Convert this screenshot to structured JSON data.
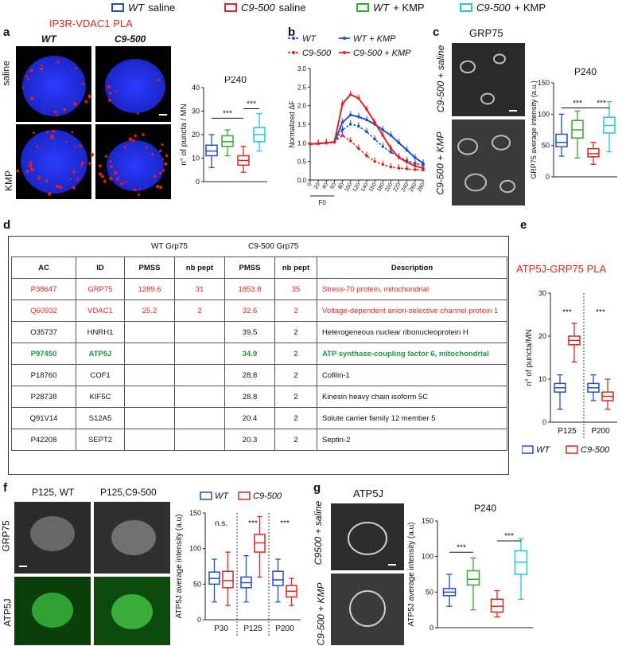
{
  "legend": [
    {
      "genotype": "WT",
      "rest": " saline",
      "color": "#1f4fd1"
    },
    {
      "genotype": "C9-500",
      "rest": " saline",
      "color": "#e0251d"
    },
    {
      "genotype": "WT",
      "rest": " + KMP",
      "color": "#2eaa2e"
    },
    {
      "genotype": "C9-500",
      "rest": " + KMP",
      "color": "#22c6dc"
    }
  ],
  "panels": {
    "a": {
      "letter": "a",
      "title": "IP3R-VDAC1 PLA",
      "col_wt": "WT",
      "col_c9": "C9-500",
      "row_saline": "saline",
      "row_kmp": "KMP"
    },
    "b": {
      "letter": "b"
    },
    "c": {
      "letter": "c",
      "title": "GRP75",
      "row1": "C9-500 + saline",
      "row2": "C9-500 + KMP"
    },
    "d": {
      "letter": "d"
    },
    "e": {
      "letter": "e",
      "title": "ATP5J-GRP75 PLA"
    },
    "f": {
      "letter": "f",
      "col_wt": "P125, WT",
      "col_c9": "P125,C9-500",
      "row1": "GRP75",
      "row2": "ATP5J"
    },
    "g": {
      "letter": "g",
      "title": "ATP5J",
      "row1": "C9500 + saline",
      "row2": "C9-500 + KMP"
    }
  },
  "table": {
    "group_wt": "WT Grp75",
    "group_c9": "C9-500 Grp75",
    "headers": [
      "AC",
      "ID",
      "PMSS",
      "nb pept",
      "PMSS",
      "nb pept",
      "Description"
    ],
    "rows": [
      {
        "style": "red",
        "cells": [
          "P38647",
          "GRP75",
          "1289.6",
          "31",
          "1853.8",
          "35",
          "Stress-70 protein, mitochondrial"
        ]
      },
      {
        "style": "red",
        "cells": [
          "Q60932",
          "VDAC1",
          "25.2",
          "2",
          "32.6",
          "2",
          "Voltage-dependent anion-selective channel protein 1"
        ]
      },
      {
        "style": "",
        "cells": [
          "O35737",
          "HNRH1",
          "",
          "",
          "39.5",
          "2",
          "Heterogeneous nuclear ribonucleoprotein H"
        ]
      },
      {
        "style": "green",
        "cells": [
          "P97450",
          "ATP5J",
          "",
          "",
          "34.9",
          "2",
          "ATP synthase-coupling factor 6, mitochondrial"
        ]
      },
      {
        "style": "",
        "cells": [
          "P18760",
          "COF1",
          "",
          "",
          "28.8",
          "2",
          "Cofilin-1"
        ]
      },
      {
        "style": "",
        "cells": [
          "P28738",
          "KIF5C",
          "",
          "",
          "28.8",
          "2",
          "Kinesin heavy chain isoform 5C"
        ]
      },
      {
        "style": "",
        "cells": [
          "Q91V14",
          "S12A5",
          "",
          "",
          "20.4",
          "2",
          "Solute carrier family 12 member 5"
        ]
      },
      {
        "style": "",
        "cells": [
          "P42208",
          "SEPT2",
          "",
          "",
          "20.3",
          "2",
          "Septin-2"
        ]
      }
    ]
  },
  "chart_data": [
    {
      "id": "a",
      "type": "box",
      "title": "P240",
      "ylabel": "n° of puncta / MN",
      "ylim": [
        0,
        40
      ],
      "yticks": [
        0,
        10,
        20,
        30,
        40
      ],
      "boxes": [
        {
          "color": "#1f4fd1",
          "min": 6,
          "q1": 11,
          "median": 13,
          "q3": 15.5,
          "max": 20
        },
        {
          "color": "#2eaa2e",
          "min": 11,
          "q1": 15,
          "median": 17,
          "q3": 19.5,
          "max": 22
        },
        {
          "color": "#e0251d",
          "min": 4,
          "q1": 7,
          "median": 9,
          "q3": 11,
          "max": 15
        },
        {
          "color": "#22c6dc",
          "min": 13,
          "q1": 17,
          "median": 20,
          "q3": 23,
          "max": 29
        }
      ],
      "sig": [
        {
          "from": 0,
          "to": 2,
          "y": 27,
          "label": "***"
        },
        {
          "from": 2,
          "to": 3,
          "y": 31,
          "label": "***"
        }
      ]
    },
    {
      "id": "b",
      "type": "line",
      "ylabel": "Normalized ΔF",
      "xlabel": "F0",
      "ylim": [
        0,
        3.0
      ],
      "yticks": [
        "0.0",
        "0.5",
        "1.0",
        "1.5",
        "2.0",
        "2.5",
        "3.0"
      ],
      "xticks": [
        "0",
        "20",
        "40",
        "60",
        "80",
        "100",
        "120",
        "140",
        "160",
        "180",
        "200",
        "220",
        "240",
        "260",
        "280"
      ],
      "legend": [
        {
          "label": "WT",
          "color": "#1f4fd1",
          "dashed": true
        },
        {
          "label": "C9-500",
          "color": "#e0251d",
          "dashed": true
        },
        {
          "label": "WT + KMP",
          "color": "#1f4fd1",
          "dashed": false
        },
        {
          "label": "C9-500 + KMP",
          "color": "#e0251d",
          "dashed": false
        }
      ],
      "series": [
        {
          "name": "WT",
          "color": "#1f4fd1",
          "dashed": true,
          "x": [
            0,
            20,
            40,
            60,
            80,
            100,
            120,
            140,
            160,
            180,
            200,
            220,
            240,
            260,
            280
          ],
          "y": [
            0.97,
            0.98,
            1.0,
            1.02,
            1.35,
            1.5,
            1.45,
            1.3,
            1.1,
            0.9,
            0.75,
            0.62,
            0.52,
            0.45,
            0.4
          ]
        },
        {
          "name": "C9-500",
          "color": "#e0251d",
          "dashed": true,
          "x": [
            0,
            20,
            40,
            60,
            80,
            100,
            120,
            140,
            160,
            180,
            200,
            220,
            240,
            260,
            280
          ],
          "y": [
            0.97,
            0.98,
            1.0,
            1.02,
            1.2,
            1.05,
            0.85,
            0.65,
            0.5,
            0.42,
            0.35,
            0.32,
            0.3,
            0.28,
            0.27
          ]
        },
        {
          "name": "WT + KMP",
          "color": "#1f4fd1",
          "dashed": false,
          "x": [
            0,
            20,
            40,
            60,
            80,
            100,
            120,
            140,
            160,
            180,
            200,
            220,
            240,
            260,
            280
          ],
          "y": [
            0.97,
            0.98,
            1.0,
            1.02,
            1.55,
            1.75,
            1.7,
            1.62,
            1.5,
            1.35,
            1.2,
            1.0,
            0.8,
            0.6,
            0.45
          ]
        },
        {
          "name": "C9-500 + KMP",
          "color": "#e0251d",
          "dashed": false,
          "x": [
            0,
            20,
            40,
            60,
            80,
            100,
            120,
            140,
            160,
            180,
            200,
            220,
            240,
            260,
            280
          ],
          "y": [
            0.97,
            0.98,
            1.0,
            1.02,
            2.05,
            2.3,
            2.2,
            1.9,
            1.55,
            1.2,
            0.85,
            0.6,
            0.48,
            0.38,
            0.32
          ]
        }
      ]
    },
    {
      "id": "c",
      "type": "box",
      "title": "P240",
      "ylabel": "GRP75 average intensity (a.u.)",
      "ylim": [
        0,
        150
      ],
      "yticks": [
        0,
        50,
        100,
        150
      ],
      "boxes": [
        {
          "color": "#1f4fd1",
          "min": 33,
          "q1": 48,
          "median": 55,
          "q3": 68,
          "max": 100
        },
        {
          "color": "#2eaa2e",
          "min": 30,
          "q1": 62,
          "median": 75,
          "q3": 90,
          "max": 105
        },
        {
          "color": "#e0251d",
          "min": 20,
          "q1": 32,
          "median": 37,
          "q3": 45,
          "max": 55
        },
        {
          "color": "#22c6dc",
          "min": 40,
          "q1": 70,
          "median": 82,
          "q3": 95,
          "max": 120
        }
      ],
      "sig": [
        {
          "from": 0,
          "to": 2,
          "y": 110,
          "label": "***"
        },
        {
          "from": 2,
          "to": 3,
          "y": 110,
          "label": "***"
        }
      ]
    },
    {
      "id": "e",
      "type": "box",
      "ylabel": "n° of puncta/MN",
      "ylim": [
        0,
        30
      ],
      "yticks": [
        0,
        10,
        20,
        30
      ],
      "xcategories": [
        "P125",
        "P200"
      ],
      "boxes": [
        {
          "color": "#1f4fd1",
          "group": 0,
          "min": 3,
          "q1": 7,
          "median": 8,
          "q3": 9,
          "max": 11
        },
        {
          "color": "#e0251d",
          "group": 0,
          "min": 14,
          "q1": 18,
          "median": 19,
          "q3": 20,
          "max": 23
        },
        {
          "color": "#1f4fd1",
          "group": 1,
          "min": 5,
          "q1": 7,
          "median": 8,
          "q3": 9,
          "max": 11
        },
        {
          "color": "#e0251d",
          "group": 1,
          "min": 3,
          "q1": 5,
          "median": 6,
          "q3": 7,
          "max": 10
        }
      ],
      "sig": [
        {
          "group": 0,
          "y": 25,
          "label": "***"
        },
        {
          "group": 1,
          "y": 25,
          "label": "***"
        }
      ],
      "legend": [
        {
          "label": "WT",
          "color": "#1f4fd1"
        },
        {
          "label": "C9-500",
          "color": "#e0251d"
        }
      ]
    },
    {
      "id": "f",
      "type": "box",
      "ylabel": "ATP5J  average intensity (a.u)",
      "ylim": [
        0,
        150
      ],
      "yticks": [
        0,
        50,
        100,
        150
      ],
      "xcategories": [
        "P30",
        "P125",
        "P200"
      ],
      "boxes": [
        {
          "color": "#1f4fd1",
          "group": 0,
          "min": 25,
          "q1": 50,
          "median": 58,
          "q3": 67,
          "max": 85
        },
        {
          "color": "#e0251d",
          "group": 0,
          "min": 20,
          "q1": 45,
          "median": 55,
          "q3": 68,
          "max": 95
        },
        {
          "color": "#1f4fd1",
          "group": 1,
          "min": 25,
          "q1": 45,
          "median": 52,
          "q3": 60,
          "max": 90
        },
        {
          "color": "#e0251d",
          "group": 1,
          "min": 60,
          "q1": 95,
          "median": 108,
          "q3": 120,
          "max": 145
        },
        {
          "color": "#1f4fd1",
          "group": 2,
          "min": 25,
          "q1": 48,
          "median": 56,
          "q3": 68,
          "max": 85
        },
        {
          "color": "#e0251d",
          "group": 2,
          "min": 20,
          "q1": 32,
          "median": 40,
          "q3": 48,
          "max": 58
        }
      ],
      "sig": [
        {
          "group": 0,
          "y": 132,
          "label": "n.s."
        },
        {
          "group": 1,
          "y": 132,
          "label": "***"
        },
        {
          "group": 2,
          "y": 132,
          "label": "***"
        }
      ],
      "legend": [
        {
          "label": "WT",
          "color": "#1f4fd1"
        },
        {
          "label": "C9-500",
          "color": "#e0251d"
        }
      ]
    },
    {
      "id": "g",
      "type": "box",
      "title": "P240",
      "ylabel": "ATP5J average intensity (a.u)",
      "ylim": [
        0,
        150
      ],
      "yticks": [
        0,
        50,
        100,
        150
      ],
      "boxes": [
        {
          "color": "#1f4fd1",
          "min": 30,
          "q1": 45,
          "median": 50,
          "q3": 55,
          "max": 75
        },
        {
          "color": "#2eaa2e",
          "min": 25,
          "q1": 60,
          "median": 68,
          "q3": 80,
          "max": 98
        },
        {
          "color": "#e0251d",
          "min": 15,
          "q1": 22,
          "median": 30,
          "q3": 40,
          "max": 52
        },
        {
          "color": "#22c6dc",
          "min": 40,
          "q1": 75,
          "median": 92,
          "q3": 108,
          "max": 125
        }
      ],
      "sig": [
        {
          "from": 0,
          "to": 1,
          "y": 106,
          "label": "***"
        },
        {
          "from": 2,
          "to": 3,
          "y": 122,
          "label": "***"
        }
      ]
    }
  ]
}
